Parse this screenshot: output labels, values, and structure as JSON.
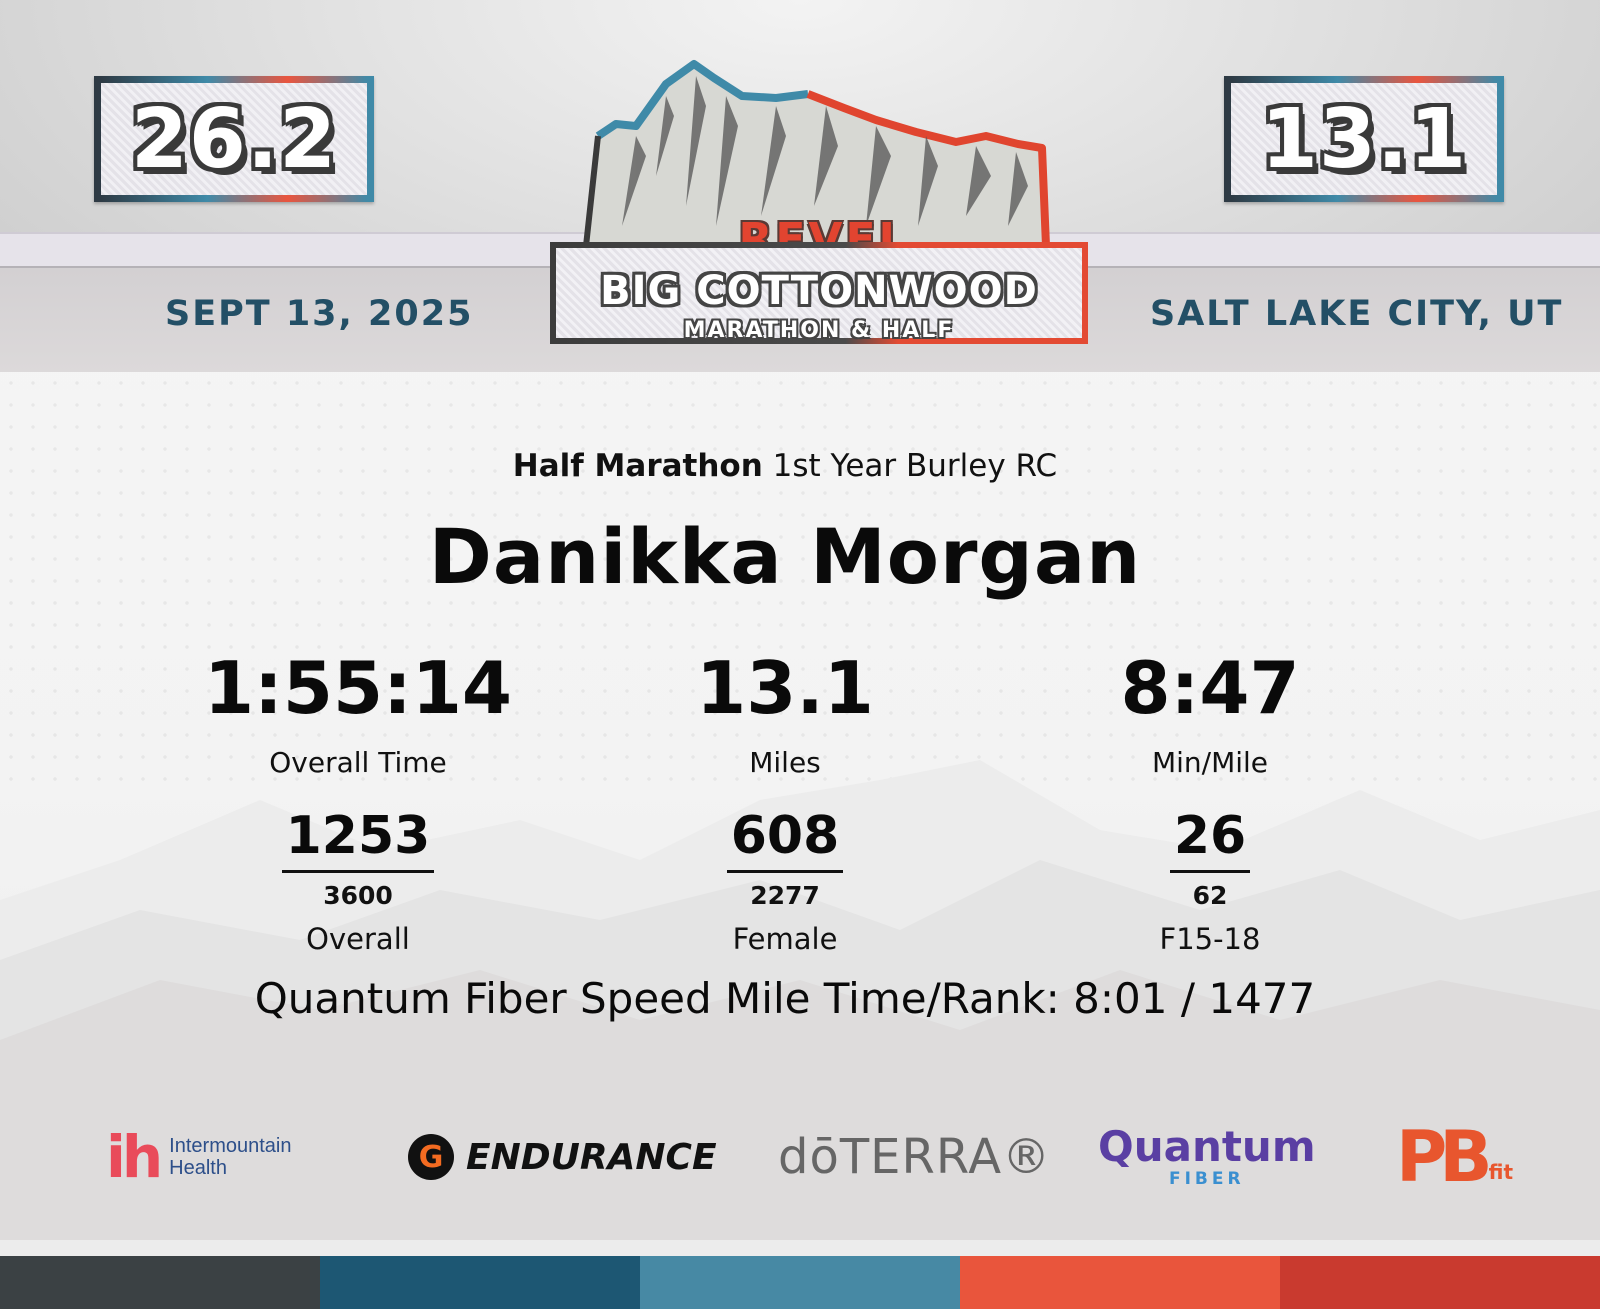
{
  "header": {
    "left_distance": "26.2",
    "right_distance": "13.1",
    "date": "SEPT 13, 2025",
    "location": "SALT LAKE CITY, UT",
    "logo": {
      "brand": "REVEL",
      "event": "BIG COTTONWOOD",
      "subtitle": "MARATHON & HALF"
    }
  },
  "result": {
    "race": "Half Marathon",
    "team": "1st Year Burley RC",
    "runner_name": "Danikka Morgan",
    "stats": [
      {
        "value": "1:55:14",
        "label": "Overall Time"
      },
      {
        "value": "13.1",
        "label": "Miles"
      },
      {
        "value": "8:47",
        "label": "Min/Mile"
      }
    ],
    "ranks": [
      {
        "place": "1253",
        "total": "3600",
        "label": "Overall"
      },
      {
        "place": "608",
        "total": "2277",
        "label": "Female"
      },
      {
        "place": "26",
        "total": "62",
        "label": "F15-18"
      }
    ],
    "speed_mile": "Quantum Fiber Speed Mile Time/Rank: 8:01 / 1477"
  },
  "sponsors": {
    "intermountain": {
      "mark": "ih",
      "line1": "Intermountain",
      "line2": "Health"
    },
    "gatorade": {
      "mark": "G",
      "name": "ENDURANCE"
    },
    "doterra": {
      "name": "dōTERRA®"
    },
    "quantum": {
      "name": "Quantum",
      "sub": "FIBER"
    },
    "pbfit": {
      "name": "PB",
      "sub": "fit"
    }
  },
  "colors": {
    "accent_blue": "#234f66",
    "accent_red": "#e24430",
    "bar": [
      "#3b4144",
      "#1d5773",
      "#4789a4",
      "#e9553c",
      "#c93a2f"
    ]
  }
}
